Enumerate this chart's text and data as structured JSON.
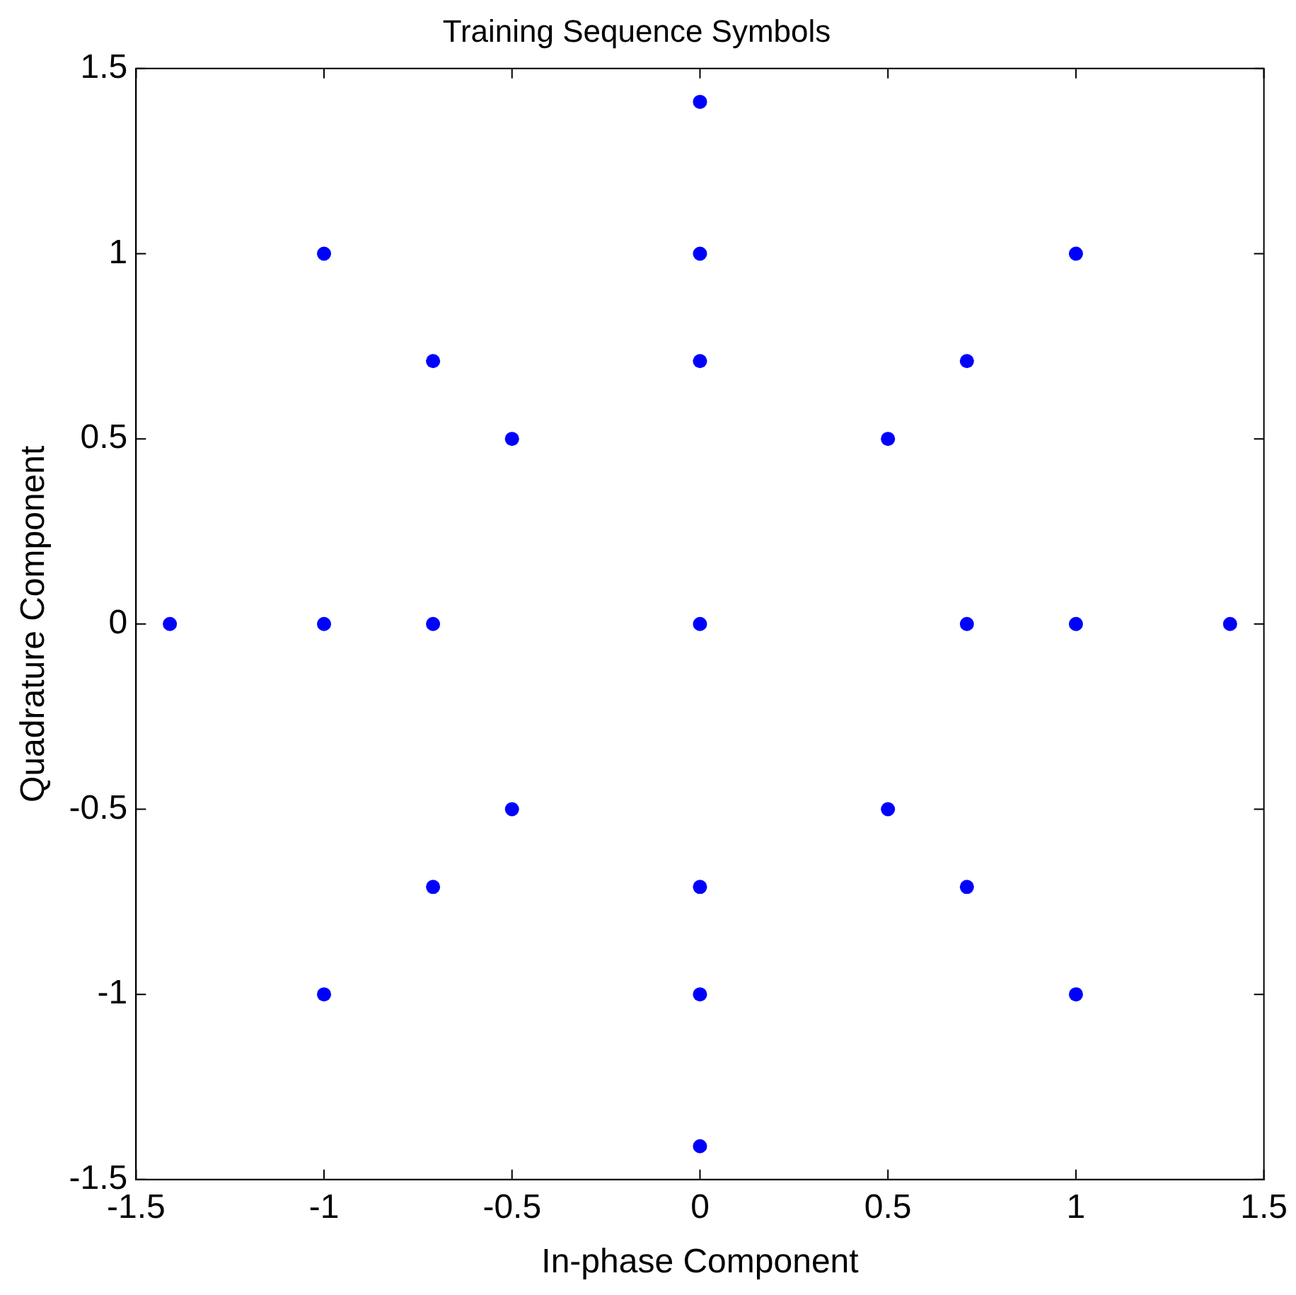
{
  "chart_data": {
    "type": "scatter",
    "title": "Training Sequence Symbols",
    "xlabel": "In-phase Component",
    "ylabel": "Quadrature Component",
    "x": [
      0,
      -1,
      0,
      1,
      -0.71,
      0,
      0.71,
      -0.5,
      0.5,
      -1.41,
      -1,
      -0.71,
      0,
      0.71,
      1,
      1.41,
      -0.5,
      0.5,
      -0.71,
      0,
      0.71,
      -1,
      0,
      1,
      0
    ],
    "series": [
      {
        "color": "#0000ff",
        "values": [
          1.41,
          1,
          1,
          1,
          0.71,
          0.71,
          0.71,
          0.5,
          0.5,
          0,
          0,
          0,
          0,
          0,
          0,
          0,
          -0.5,
          -0.5,
          -0.71,
          -0.71,
          -0.71,
          -1,
          -1,
          -1,
          -1.41
        ]
      }
    ],
    "xlim": [
      -1.5,
      1.5
    ],
    "xticks": [
      -1.5,
      -1,
      -0.5,
      0,
      0.5,
      1,
      1.5
    ],
    "ylim": [
      -1.5,
      1.5
    ],
    "yticks": [
      -1.5,
      -1,
      -0.5,
      0,
      0.5,
      1,
      1.5
    ],
    "grid": false,
    "legend": false,
    "marker": "circle"
  }
}
